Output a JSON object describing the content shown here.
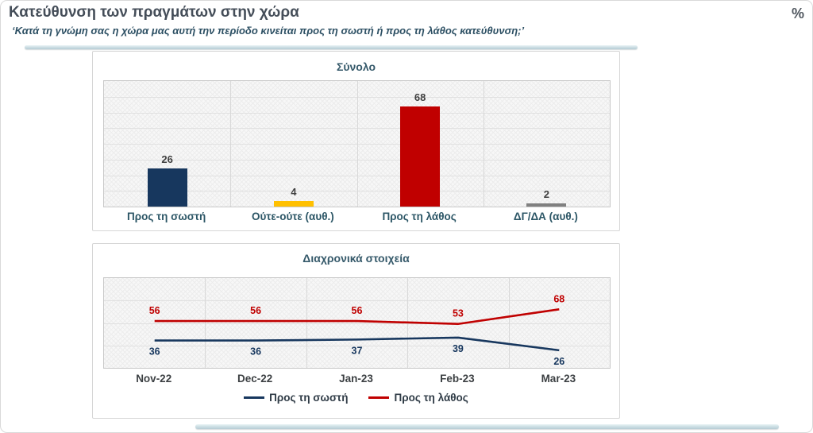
{
  "header": {
    "title": "Κατεύθυνση των πραγμάτων στην χώρα",
    "subtitle": "‘Κατά τη γνώμη σας η χώρα μας αυτή την περίοδο κινείται προς τη σωστή ή προς τη λάθος κατεύθυνση;’",
    "unit": "%"
  },
  "colors": {
    "right_direction": "#17375E",
    "neither": "#FFC000",
    "wrong_direction": "#C00000",
    "dont_know": "#808080",
    "accent_divider": "#C4D8DE",
    "value_label": "#3F3F3F",
    "chart_title": "#35596A"
  },
  "chart_data": [
    {
      "type": "bar",
      "title": "Σύνολο",
      "categories": [
        "Προς τη σωστή",
        "Ούτε-ούτε (αυθ.)",
        "Προς τη λάθος",
        "ΔΓ/ΔΑ (αυθ.)"
      ],
      "values": [
        26,
        4,
        68,
        2
      ],
      "bar_colors": [
        "#17375E",
        "#FFC000",
        "#C00000",
        "#808080"
      ],
      "ylim": [
        0,
        85
      ],
      "grid": true,
      "data_labels": true,
      "xlabel": "",
      "ylabel": ""
    },
    {
      "type": "line",
      "title": "Διαχρονικά στοιχεία",
      "categories": [
        "Nov-22",
        "Dec-22",
        "Jan-23",
        "Feb-23",
        "Mar-23"
      ],
      "series": [
        {
          "name": "Προς τη σωστή",
          "color": "#17375E",
          "values": [
            36,
            36,
            37,
            39,
            26
          ],
          "label_position": "below"
        },
        {
          "name": "Προς τη λάθος",
          "color": "#C00000",
          "values": [
            56,
            56,
            56,
            53,
            68
          ],
          "label_position": "above"
        }
      ],
      "ylim": [
        8,
        100
      ],
      "grid": true,
      "data_labels": true,
      "legend_position": "bottom",
      "xlabel": "",
      "ylabel": ""
    }
  ]
}
